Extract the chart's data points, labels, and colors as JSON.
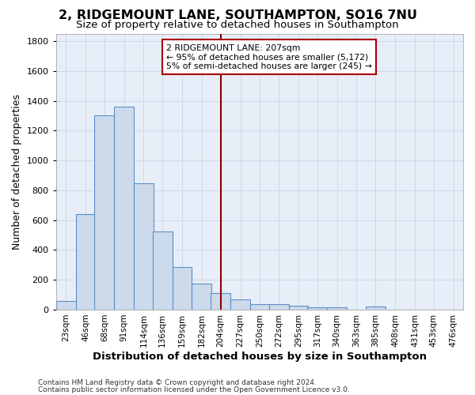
{
  "title": "2, RIDGEMOUNT LANE, SOUTHAMPTON, SO16 7NU",
  "subtitle": "Size of property relative to detached houses in Southampton",
  "xlabel": "Distribution of detached houses by size in Southampton",
  "ylabel": "Number of detached properties",
  "bar_color": "#ccdaeb",
  "bar_edge_color": "#5b8fc9",
  "background_color": "#e8eef8",
  "grid_color": "#c8d0e0",
  "vline_x": 204,
  "vline_color": "#8b0000",
  "categories": [
    23,
    46,
    68,
    91,
    114,
    136,
    159,
    182,
    204,
    227,
    250,
    272,
    295,
    317,
    340,
    363,
    385,
    408,
    431,
    453,
    476
  ],
  "values": [
    60,
    640,
    1300,
    1360,
    845,
    525,
    285,
    175,
    110,
    70,
    35,
    35,
    25,
    15,
    15,
    0,
    20,
    0,
    0,
    0,
    0
  ],
  "bin_width": 23,
  "ylim": [
    0,
    1850
  ],
  "annotation_text": "2 RIDGEMOUNT LANE: 207sqm\n← 95% of detached houses are smaller (5,172)\n5% of semi-detached houses are larger (245) →",
  "footer_line1": "Contains HM Land Registry data © Crown copyright and database right 2024.",
  "footer_line2": "Contains public sector information licensed under the Open Government Licence v3.0.",
  "title_fontsize": 11.5,
  "subtitle_fontsize": 9.5,
  "tick_label_fontsize": 7.5,
  "ylabel_fontsize": 9,
  "xlabel_fontsize": 9.5,
  "annotation_fontsize": 7.8,
  "footer_fontsize": 6.5
}
